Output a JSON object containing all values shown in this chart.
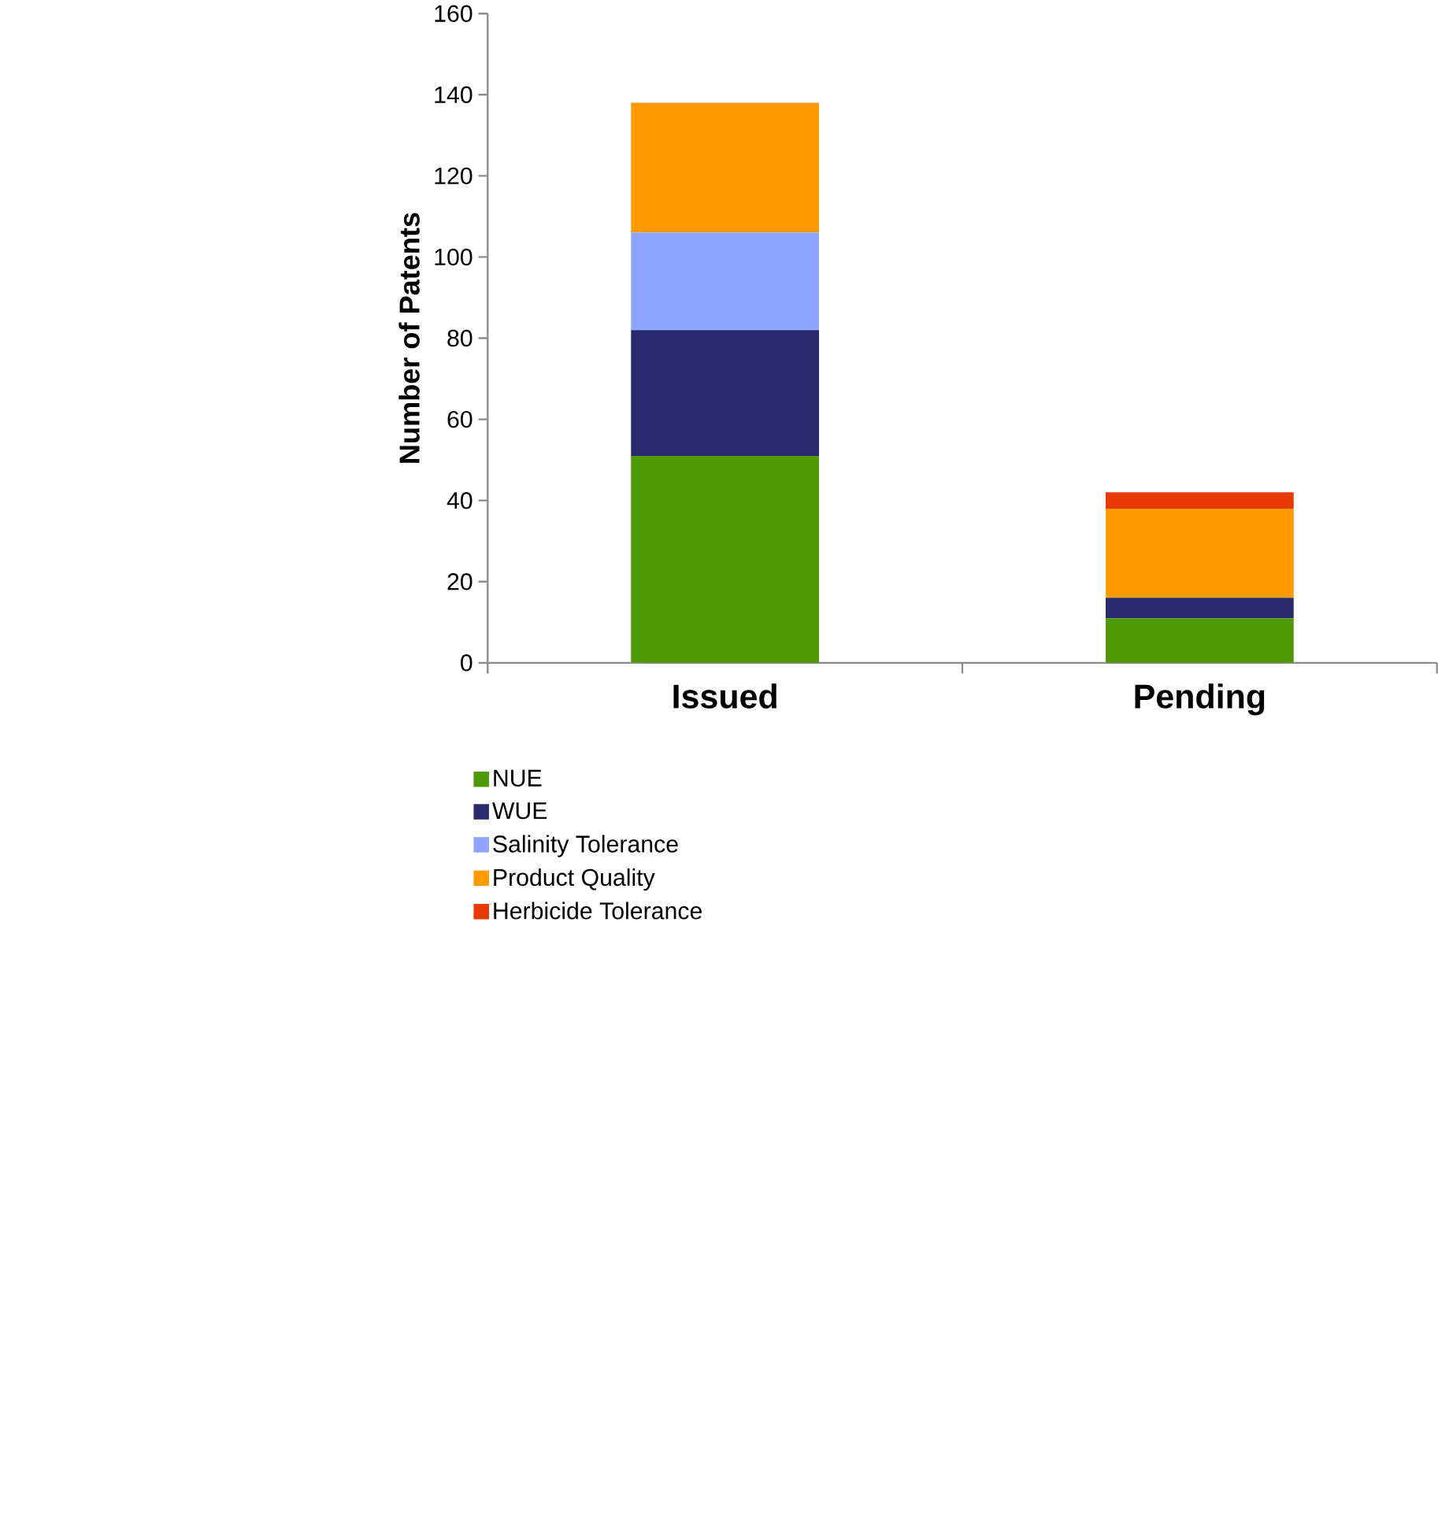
{
  "chart_data": {
    "type": "bar",
    "stacked": true,
    "ylabel": "Number of Patents",
    "categories": [
      "Issued",
      "Pending"
    ],
    "series": [
      {
        "name": "NUE",
        "color": "#4e9a06",
        "values": [
          51,
          11
        ]
      },
      {
        "name": "WUE",
        "color": "#292a6e",
        "values": [
          31,
          5
        ]
      },
      {
        "name": "Salinity Tolerance",
        "color": "#8ea6ff",
        "values": [
          24,
          0
        ]
      },
      {
        "name": "Product Quality",
        "color": "#ff9a00",
        "values": [
          32,
          22
        ]
      },
      {
        "name": "Herbicide Tolerance",
        "color": "#e83a05",
        "values": [
          0,
          4
        ]
      }
    ],
    "ylim": [
      0,
      160
    ],
    "yticks": [
      0,
      20,
      40,
      60,
      80,
      100,
      120,
      140,
      160
    ],
    "legend": "bottom"
  }
}
